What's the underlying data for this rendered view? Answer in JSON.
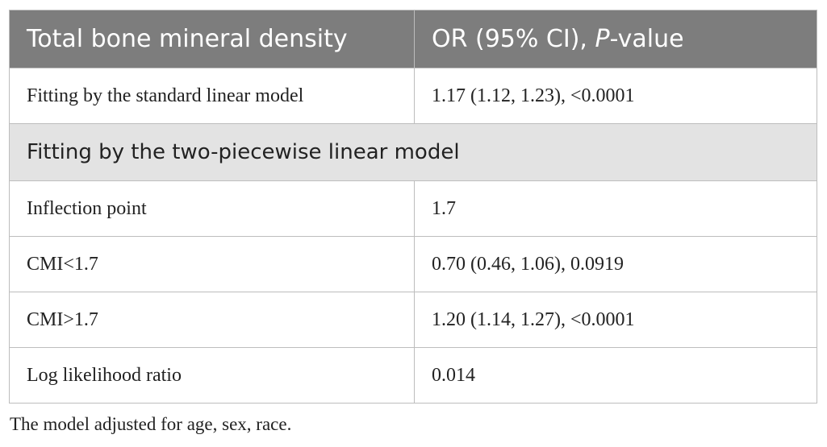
{
  "table": {
    "header": [
      "Total bone mineral density",
      [
        "OR (95% CI), ",
        "P",
        "-value"
      ]
    ],
    "rows": [
      [
        "Fitting by the standard linear model",
        "1.17 (1.12, 1.23), <0.0001"
      ],
      [
        "Fitting by the two-piecewise linear model"
      ],
      [
        "Inflection point",
        "1.7"
      ],
      [
        "CMI<1.7",
        "0.70 (0.46, 1.06), 0.0919"
      ],
      [
        "CMI>1.7",
        "1.20 (1.14, 1.27), <0.0001"
      ],
      [
        "Log likelihood ratio",
        "0.014"
      ]
    ],
    "footnote": "The model adjusted for age, sex, race."
  }
}
